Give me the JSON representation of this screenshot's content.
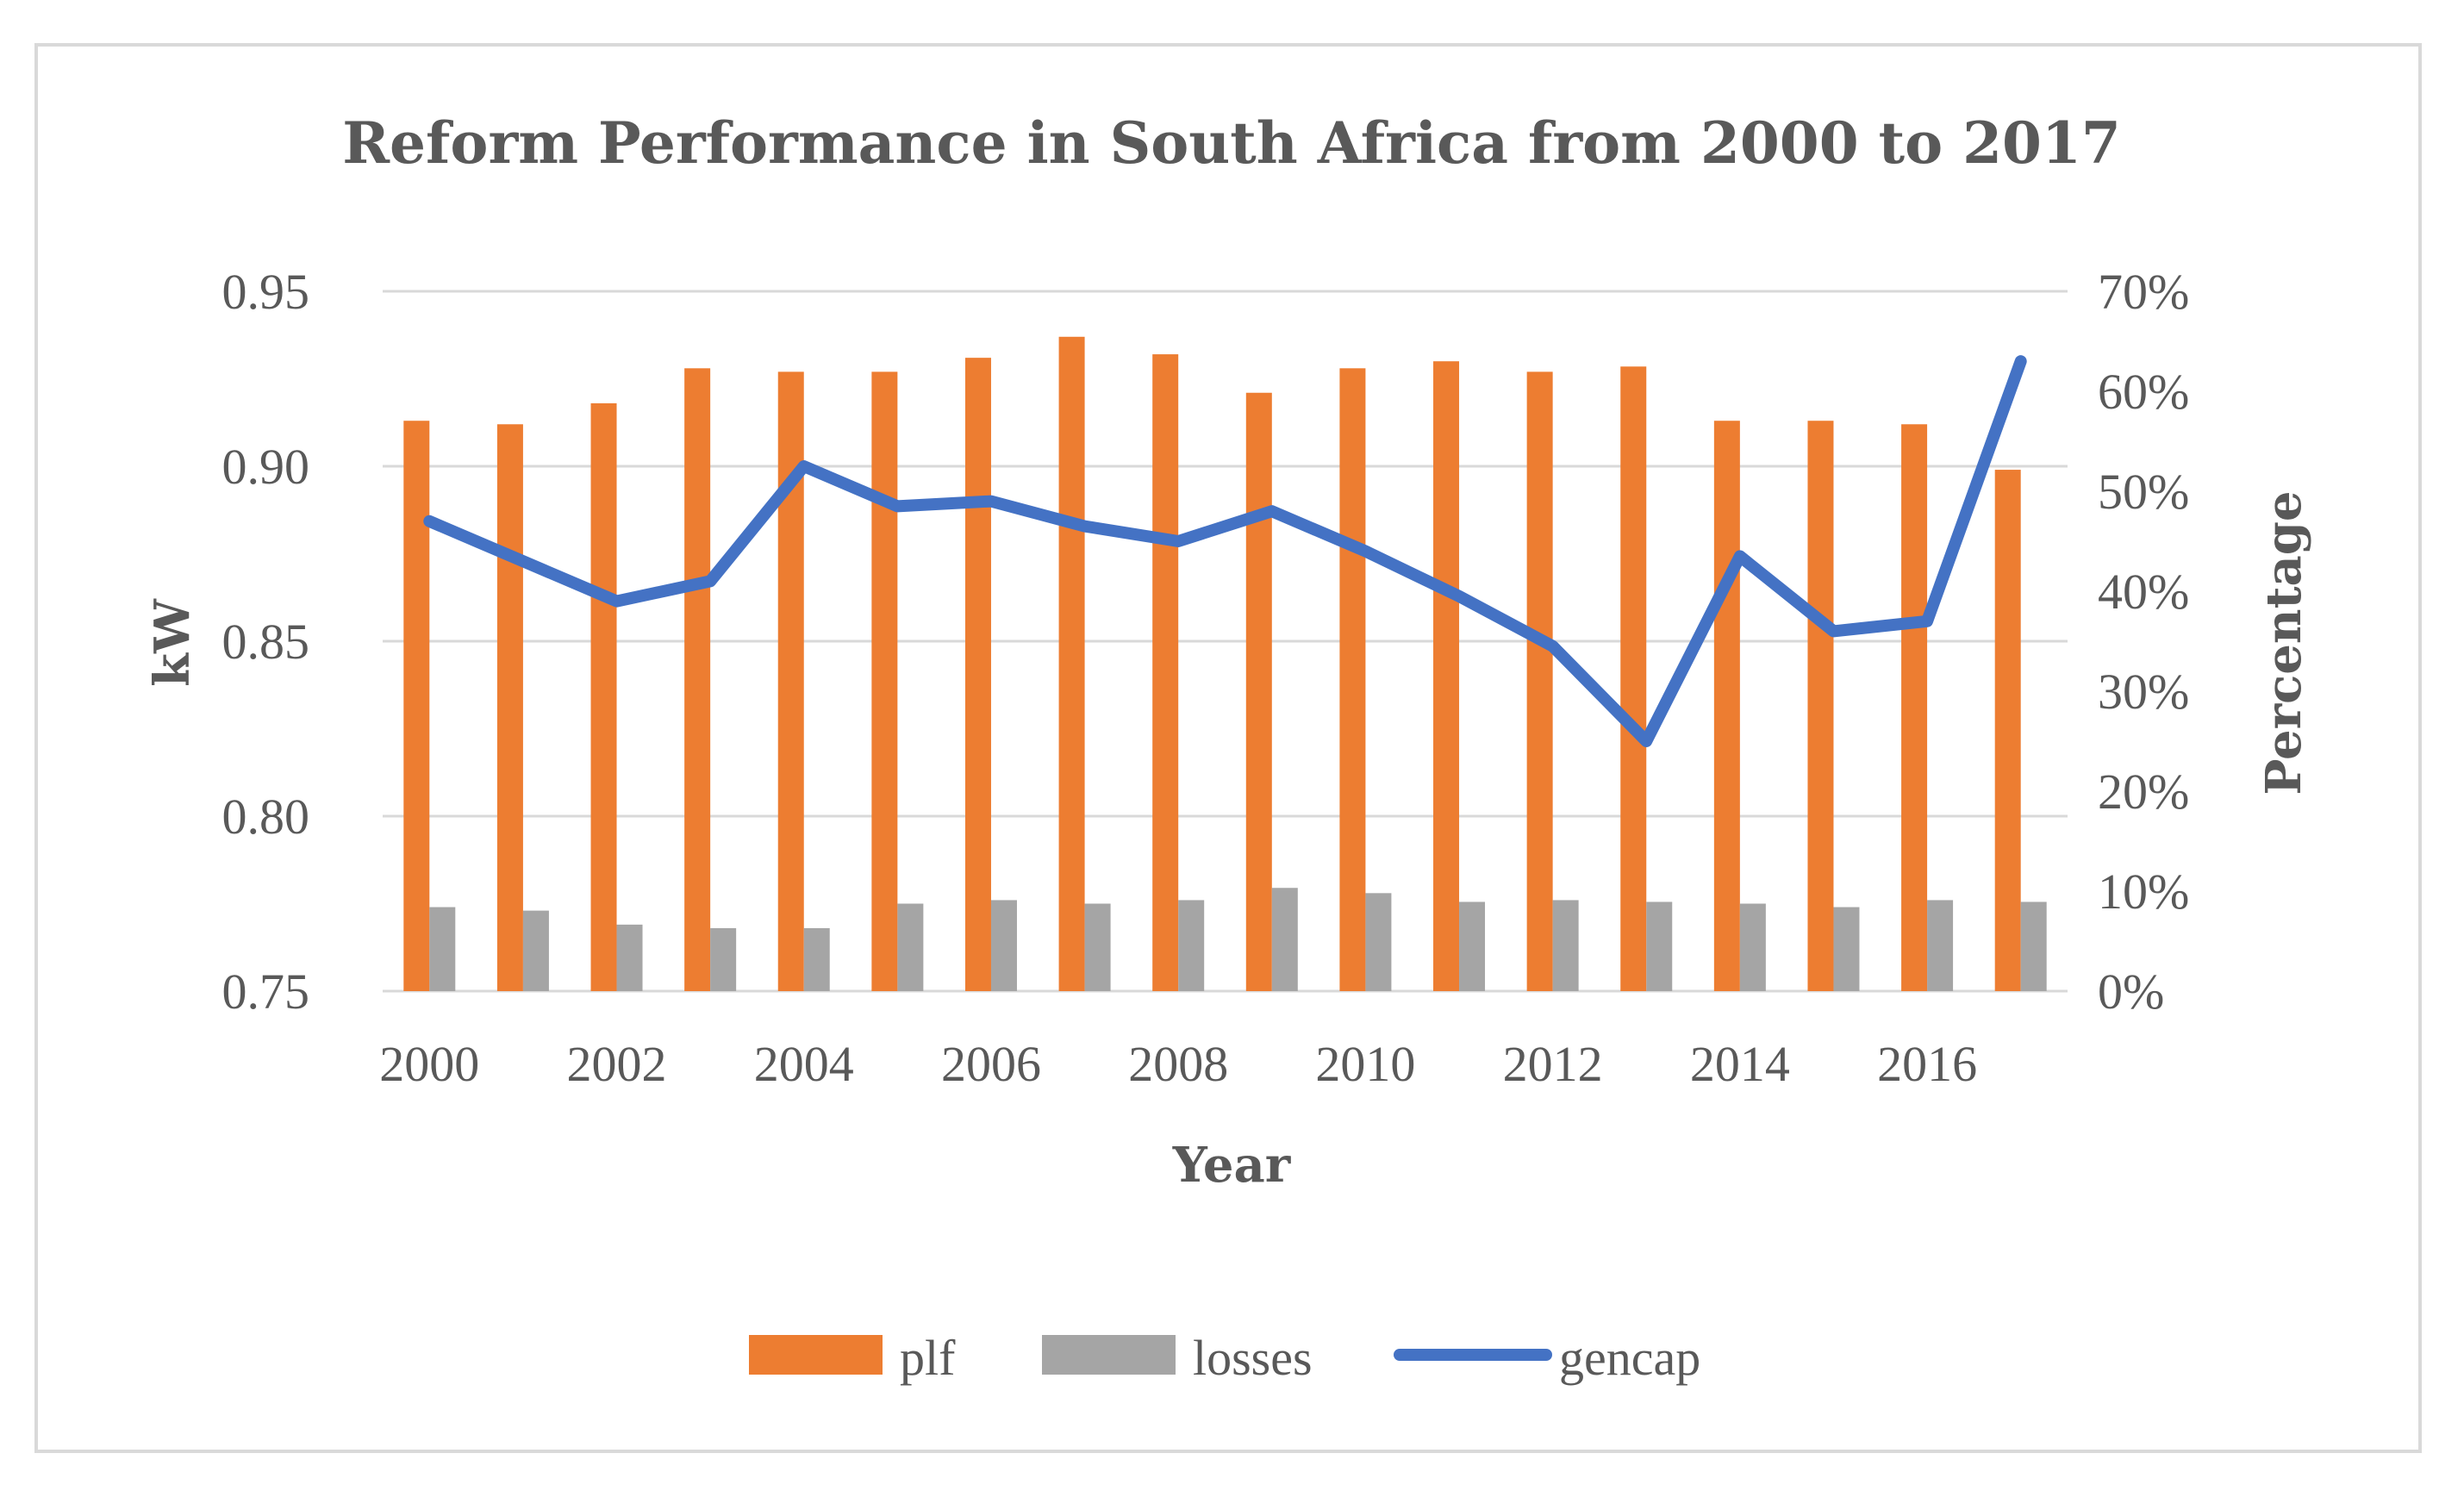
{
  "chart_data": {
    "type": "bar",
    "title": "Reform Performance in South Africa from 2000 to 2017",
    "xlabel": "Year",
    "ylabel_left": "kW",
    "ylabel_right": "Percentage",
    "categories": [
      2000,
      2001,
      2002,
      2003,
      2004,
      2005,
      2006,
      2007,
      2008,
      2009,
      2010,
      2011,
      2012,
      2013,
      2014,
      2015,
      2016,
      2017
    ],
    "x_tick_labels": [
      "2000",
      "",
      "2002",
      "",
      "2004",
      "",
      "2006",
      "",
      "2008",
      "",
      "2010",
      "",
      "2012",
      "",
      "2014",
      "",
      "2016",
      ""
    ],
    "ylim_left": [
      0.75,
      0.95
    ],
    "y_ticks_left": [
      "0.75",
      "0.80",
      "0.85",
      "0.90",
      "0.95"
    ],
    "ylim_right": [
      0,
      70
    ],
    "y_ticks_right": [
      "0%",
      "10%",
      "20%",
      "30%",
      "40%",
      "50%",
      "60%",
      "70%"
    ],
    "grid": true,
    "legend_position": "bottom",
    "series": [
      {
        "name": "plf",
        "type": "bar",
        "axis": "left",
        "color": "#ed7d31",
        "values": [
          0.913,
          0.912,
          0.918,
          0.928,
          0.927,
          0.927,
          0.931,
          0.937,
          0.932,
          0.921,
          0.928,
          0.93,
          0.927,
          0.9285,
          0.913,
          0.913,
          0.912,
          0.899
        ]
      },
      {
        "name": "losses",
        "type": "bar",
        "axis": "left",
        "color": "#a5a5a5",
        "values": [
          0.774,
          0.773,
          0.769,
          0.768,
          0.768,
          0.775,
          0.776,
          0.775,
          0.776,
          0.7795,
          0.778,
          0.7755,
          0.776,
          0.7755,
          0.775,
          0.774,
          0.776,
          0.7755
        ]
      },
      {
        "name": "gencap",
        "type": "line",
        "axis": "right",
        "color": "#4472c4",
        "values": [
          47,
          43,
          39,
          41,
          52.5,
          48.5,
          49,
          46.5,
          45,
          48,
          44,
          39.5,
          34.5,
          25,
          43.5,
          36,
          37,
          63
        ]
      }
    ]
  }
}
